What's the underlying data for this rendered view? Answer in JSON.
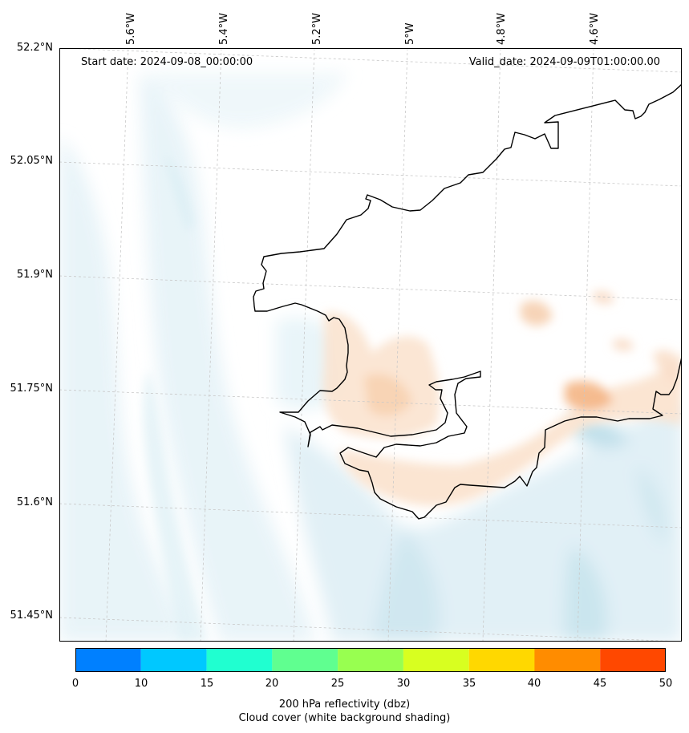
{
  "header": {
    "start_date": "Start date: 2024-09-08_00:00:00",
    "valid_date": "Valid_date: 2024-09-09T01:00:00.00"
  },
  "longitude_ticks": [
    "5.6°W",
    "5.4°W",
    "5.2°W",
    "5°W",
    "4.8°W",
    "4.6°W"
  ],
  "latitude_ticks": [
    "52.2°N",
    "52.05°N",
    "51.9°N",
    "51.75°N",
    "51.6°N",
    "51.45°N"
  ],
  "colorbar": {
    "bounds": [
      "0",
      "10",
      "15",
      "20",
      "25",
      "30",
      "35",
      "40",
      "45",
      "50"
    ],
    "colors": [
      "#0080ff",
      "#00c8ff",
      "#20ffd0",
      "#60ff90",
      "#98ff50",
      "#d8ff20",
      "#ffd800",
      "#ff8c00",
      "#ff4800"
    ],
    "title_line1": "200 hPa reflectivity (dbz)",
    "title_line2": "Cloud cover (white background shading)"
  },
  "colors": {
    "coastline": "#000000",
    "cloud_shading": "#d6ecf3",
    "reflectivity_shading": "#f6c8a0",
    "gridline": "#c8c8c8"
  }
}
